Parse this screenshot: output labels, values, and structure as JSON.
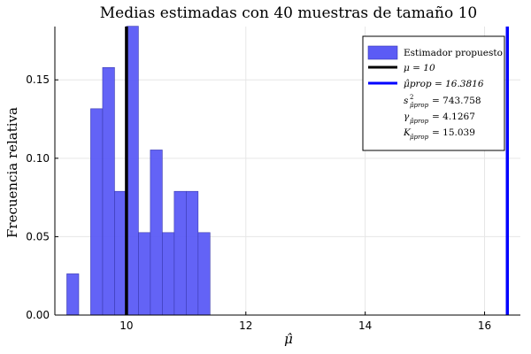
{
  "chart_data": {
    "type": "bar",
    "title": "Medias estimadas con 40 muestras de tamaño 10",
    "xlabel": "μ̂",
    "ylabel": "Frecuencia relativa",
    "xlim": [
      8.8,
      16.6
    ],
    "ylim": [
      0,
      0.184
    ],
    "xticks": [
      10,
      12,
      14,
      16
    ],
    "yticks": [
      0.0,
      0.05,
      0.1,
      0.15
    ],
    "xtick_labels": [
      "10",
      "12",
      "14",
      "16"
    ],
    "ytick_labels": [
      "0.00",
      "0.05",
      "0.10",
      "0.15"
    ],
    "grid": true,
    "legend_position": "top-right",
    "bin_width": 0.2,
    "series": [
      {
        "name": "Estimador propuesto",
        "color": "#5b5bf5",
        "bins": [
          {
            "left": 9.0,
            "value": 0.0263
          },
          {
            "left": 9.4,
            "value": 0.1316
          },
          {
            "left": 9.6,
            "value": 0.1579
          },
          {
            "left": 9.8,
            "value": 0.0789
          },
          {
            "left": 10.0,
            "value": 0.1842
          },
          {
            "left": 10.2,
            "value": 0.0526
          },
          {
            "left": 10.4,
            "value": 0.1053
          },
          {
            "left": 10.6,
            "value": 0.0526
          },
          {
            "left": 10.8,
            "value": 0.0789
          },
          {
            "left": 11.0,
            "value": 0.0789
          },
          {
            "left": 11.2,
            "value": 0.0526
          }
        ]
      }
    ],
    "vlines": [
      {
        "x": 10,
        "color": "#000000",
        "legend": "μ = 10"
      },
      {
        "x": 16.3816,
        "color": "#0000ff",
        "legend": "μ̂prop = 16.3816"
      }
    ],
    "legend_extra": [
      {
        "symbol": "s",
        "sup": "2",
        "sub": "μ̂prop",
        "value": "= 743.758"
      },
      {
        "symbol": "γ",
        "sup": "",
        "sub": "μ̂prop",
        "value": "= 4.1267"
      },
      {
        "symbol": "K",
        "sup": "",
        "sub": "μ̂prop",
        "value": "= 15.039"
      }
    ]
  }
}
